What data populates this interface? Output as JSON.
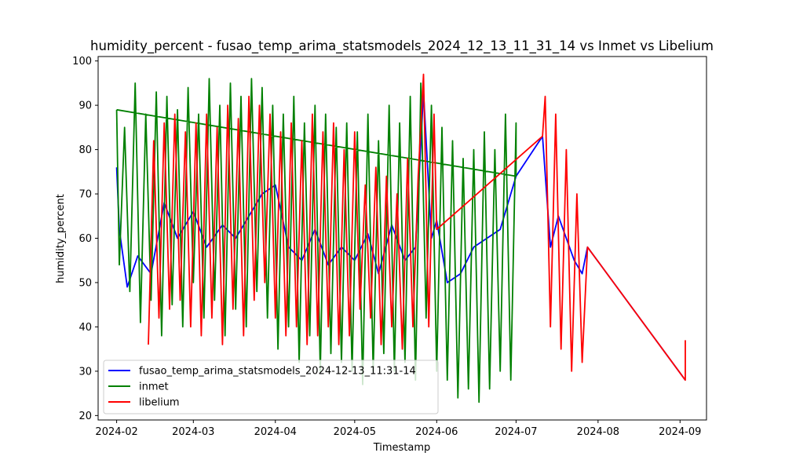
{
  "chart_data": {
    "type": "line",
    "title": "humidity_percent - fusao_temp_arima_statsmodels_2024_12_13_11_31_14 vs Inmet vs Libelium",
    "xlabel": "Timestamp",
    "ylabel": "humidity_percent",
    "xlim": [
      "2024-01-25",
      "2024-09-11"
    ],
    "ylim": [
      19,
      101
    ],
    "x_ticks": [
      "2024-02",
      "2024-03",
      "2024-04",
      "2024-05",
      "2024-06",
      "2024-07",
      "2024-08",
      "2024-09"
    ],
    "y_ticks": [
      20,
      30,
      40,
      50,
      60,
      70,
      80,
      90,
      100
    ],
    "grid": false,
    "legend_position": "lower-left",
    "series": [
      {
        "name": "fusao_temp_arima_statsmodels_2024-12-13_11:31-14",
        "color": "#0000ff",
        "x": [
          "2024-02-01",
          "2024-02-02",
          "2024-02-05",
          "2024-02-09",
          "2024-02-14",
          "2024-02-19",
          "2024-02-24",
          "2024-03-01",
          "2024-03-06",
          "2024-03-12",
          "2024-03-17",
          "2024-03-22",
          "2024-03-27",
          "2024-04-01",
          "2024-04-06",
          "2024-04-11",
          "2024-04-16",
          "2024-04-21",
          "2024-04-26",
          "2024-05-01",
          "2024-05-06",
          "2024-05-10",
          "2024-05-15",
          "2024-05-20",
          "2024-05-24",
          "2024-05-27",
          "2024-05-30",
          "2024-06-01",
          "2024-06-05",
          "2024-06-10",
          "2024-06-15",
          "2024-06-20",
          "2024-06-25",
          "2024-07-01",
          "2024-07-11",
          "2024-07-14",
          "2024-07-17",
          "2024-07-20",
          "2024-07-23",
          "2024-07-26",
          "2024-07-28",
          "2024-09-03"
        ],
        "y": [
          76,
          62,
          49,
          56,
          52,
          68,
          60,
          66,
          58,
          63,
          60,
          65,
          70,
          72,
          58,
          55,
          62,
          54,
          58,
          55,
          61,
          52,
          63,
          55,
          58,
          93,
          60,
          64,
          50,
          52,
          58,
          60,
          62,
          74,
          83,
          58,
          65,
          60,
          55,
          52,
          58,
          28
        ]
      },
      {
        "name": "inmet",
        "color": "#008000",
        "x": [
          "2024-02-01",
          "2024-02-02",
          "2024-02-04",
          "2024-02-06",
          "2024-02-08",
          "2024-02-10",
          "2024-02-12",
          "2024-02-14",
          "2024-02-16",
          "2024-02-18",
          "2024-02-20",
          "2024-02-22",
          "2024-02-24",
          "2024-02-26",
          "2024-02-28",
          "2024-03-01",
          "2024-03-03",
          "2024-03-05",
          "2024-03-07",
          "2024-03-09",
          "2024-03-11",
          "2024-03-13",
          "2024-03-15",
          "2024-03-17",
          "2024-03-19",
          "2024-03-21",
          "2024-03-23",
          "2024-03-25",
          "2024-03-27",
          "2024-03-29",
          "2024-03-31",
          "2024-04-02",
          "2024-04-04",
          "2024-04-06",
          "2024-04-08",
          "2024-04-10",
          "2024-04-12",
          "2024-04-14",
          "2024-04-16",
          "2024-04-18",
          "2024-04-20",
          "2024-04-22",
          "2024-04-24",
          "2024-04-26",
          "2024-04-28",
          "2024-04-30",
          "2024-05-02",
          "2024-05-04",
          "2024-05-06",
          "2024-05-08",
          "2024-05-10",
          "2024-05-12",
          "2024-05-14",
          "2024-05-16",
          "2024-05-18",
          "2024-05-20",
          "2024-05-22",
          "2024-05-24",
          "2024-05-26",
          "2024-05-28",
          "2024-05-30",
          "2024-06-01",
          "2024-06-03",
          "2024-06-05",
          "2024-06-07",
          "2024-06-09",
          "2024-06-11",
          "2024-06-13",
          "2024-06-15",
          "2024-06-17",
          "2024-06-19",
          "2024-06-21",
          "2024-06-23",
          "2024-06-25",
          "2024-06-27",
          "2024-06-29",
          "2024-07-01",
          "2024-07-01",
          "2024-02-01"
        ],
        "y": [
          89,
          54,
          85,
          48,
          95,
          41,
          88,
          46,
          93,
          38,
          92,
          45,
          89,
          40,
          94,
          50,
          88,
          42,
          96,
          46,
          90,
          38,
          95,
          44,
          92,
          40,
          96,
          48,
          94,
          42,
          90,
          35,
          88,
          40,
          92,
          32,
          86,
          38,
          90,
          30,
          88,
          34,
          85,
          32,
          86,
          30,
          84,
          27,
          88,
          30,
          82,
          34,
          90,
          30,
          86,
          32,
          92,
          28,
          95,
          42,
          90,
          30,
          85,
          28,
          82,
          24,
          78,
          26,
          80,
          23,
          84,
          26,
          80,
          30,
          88,
          28,
          86,
          74,
          89
        ]
      },
      {
        "name": "libelium",
        "color": "#ff0000",
        "x": [
          "2024-02-13",
          "2024-02-15",
          "2024-02-17",
          "2024-02-19",
          "2024-02-21",
          "2024-02-23",
          "2024-02-25",
          "2024-02-27",
          "2024-02-29",
          "2024-03-02",
          "2024-03-04",
          "2024-03-06",
          "2024-03-08",
          "2024-03-10",
          "2024-03-12",
          "2024-03-14",
          "2024-03-16",
          "2024-03-18",
          "2024-03-20",
          "2024-03-22",
          "2024-03-24",
          "2024-03-26",
          "2024-03-28",
          "2024-03-30",
          "2024-04-01",
          "2024-04-03",
          "2024-04-05",
          "2024-04-07",
          "2024-04-09",
          "2024-04-11",
          "2024-04-13",
          "2024-04-15",
          "2024-04-17",
          "2024-04-19",
          "2024-04-21",
          "2024-04-23",
          "2024-04-25",
          "2024-04-27",
          "2024-04-29",
          "2024-05-01",
          "2024-05-03",
          "2024-05-05",
          "2024-05-07",
          "2024-05-09",
          "2024-05-11",
          "2024-05-13",
          "2024-05-15",
          "2024-05-17",
          "2024-05-19",
          "2024-05-21",
          "2024-05-23",
          "2024-05-25",
          "2024-05-27",
          "2024-05-29",
          "2024-05-31",
          "2024-06-01",
          "2024-07-11",
          "2024-07-12",
          "2024-07-14",
          "2024-07-16",
          "2024-07-18",
          "2024-07-20",
          "2024-07-22",
          "2024-07-24",
          "2024-07-26",
          "2024-07-28",
          "2024-09-03",
          "2024-09-03"
        ],
        "y": [
          36,
          82,
          42,
          86,
          44,
          88,
          46,
          84,
          40,
          86,
          38,
          88,
          42,
          85,
          36,
          90,
          44,
          87,
          38,
          92,
          46,
          90,
          50,
          88,
          42,
          84,
          38,
          86,
          40,
          82,
          36,
          88,
          38,
          84,
          40,
          86,
          36,
          80,
          38,
          84,
          44,
          72,
          42,
          76,
          36,
          74,
          40,
          70,
          35,
          78,
          40,
          74,
          97,
          40,
          88,
          62,
          83,
          92,
          40,
          88,
          35,
          80,
          30,
          70,
          32,
          58,
          28,
          37
        ]
      }
    ]
  }
}
